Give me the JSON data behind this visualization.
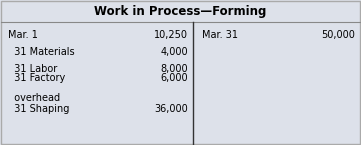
{
  "title": "Work in Process—Forming",
  "background_color": "#dde1ea",
  "border_color": "#aaaaaa",
  "line_color": "#888888",
  "divider_color": "#333333",
  "left_entries": [
    {
      "label": "Mar. 1",
      "indent": false,
      "value": "10,250"
    },
    {
      "label": "  31 Materials",
      "indent": false,
      "value": "4,000"
    },
    {
      "label": "  31 Labor",
      "indent": false,
      "value": "8,000"
    },
    {
      "label": "  31 Factory\n  overhead",
      "indent": false,
      "value": "6,000"
    },
    {
      "label": "  31 Shaping",
      "indent": false,
      "value": "36,000"
    }
  ],
  "right_entries": [
    {
      "label": "Mar. 31",
      "value": "50,000"
    }
  ],
  "title_fontsize": 8.5,
  "body_fontsize": 7.0
}
